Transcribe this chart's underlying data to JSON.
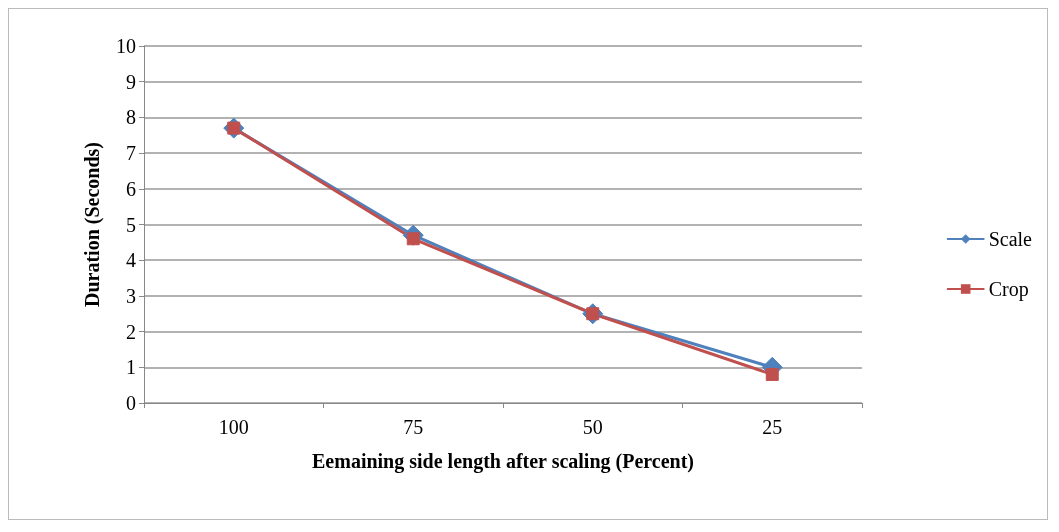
{
  "chart_data": {
    "type": "line",
    "xlabel": "Eemaining side length after scaling (Percent)",
    "ylabel": "Duration (Seconds)",
    "categories": [
      "100",
      "75",
      "50",
      "25"
    ],
    "series": [
      {
        "name": "Scale",
        "color": "#4f81bd",
        "marker": "diamond",
        "values": [
          7.7,
          4.7,
          2.5,
          1.0
        ]
      },
      {
        "name": "Crop",
        "color": "#c0504d",
        "marker": "square",
        "values": [
          7.7,
          4.6,
          2.5,
          0.8
        ]
      }
    ],
    "ylim": [
      0,
      10
    ],
    "yticks": [
      0,
      1,
      2,
      3,
      4,
      5,
      6,
      7,
      8,
      9,
      10
    ],
    "grid": "y",
    "legend": "right"
  }
}
